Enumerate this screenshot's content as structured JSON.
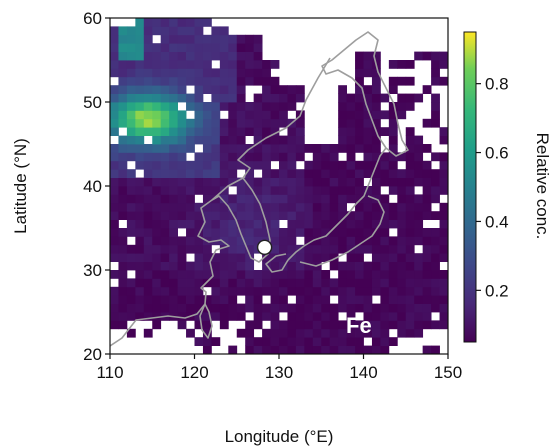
{
  "chart_data": {
    "type": "heatmap",
    "xlabel": "Longitude (°E)",
    "ylabel": "Latitude (°N)",
    "xlim": [
      110,
      150
    ],
    "ylim": [
      20,
      60
    ],
    "x_ticks": [
      110,
      120,
      130,
      140,
      150
    ],
    "y_ticks": [
      20,
      30,
      40,
      50,
      60
    ],
    "x_tick_labels": [
      "110",
      "120",
      "130",
      "140",
      "150"
    ],
    "y_tick_labels": [
      "20",
      "30",
      "40",
      "50",
      "60"
    ],
    "colorbar": {
      "label": "Relative conc.",
      "range": [
        0.05,
        0.95
      ],
      "ticks": [
        0.2,
        0.4,
        0.6,
        0.8
      ],
      "tick_labels": [
        "0.2",
        "0.4",
        "0.6",
        "0.8"
      ],
      "colormap": "viridis"
    },
    "panel_label": "Fe",
    "receptor_site": {
      "lon": 128.3,
      "lat": 32.7
    },
    "grid_cell_size_deg": 1,
    "value_samples": [
      {
        "region": "northwest (110-117E, 45-50N)",
        "value": 0.75
      },
      {
        "region": "far northwest corner (112E, 55-57N)",
        "value": 0.9
      },
      {
        "region": "north China (110-122E, 40-45N)",
        "value": 0.4
      },
      {
        "region": "Korea / Japan Sea (124-138E, 30-42N)",
        "value": 0.15
      },
      {
        "region": "southeast Pacific (135-148E, 20-30N)",
        "value": 0.1
      }
    ],
    "coastline_color": "#9e9e9e"
  }
}
